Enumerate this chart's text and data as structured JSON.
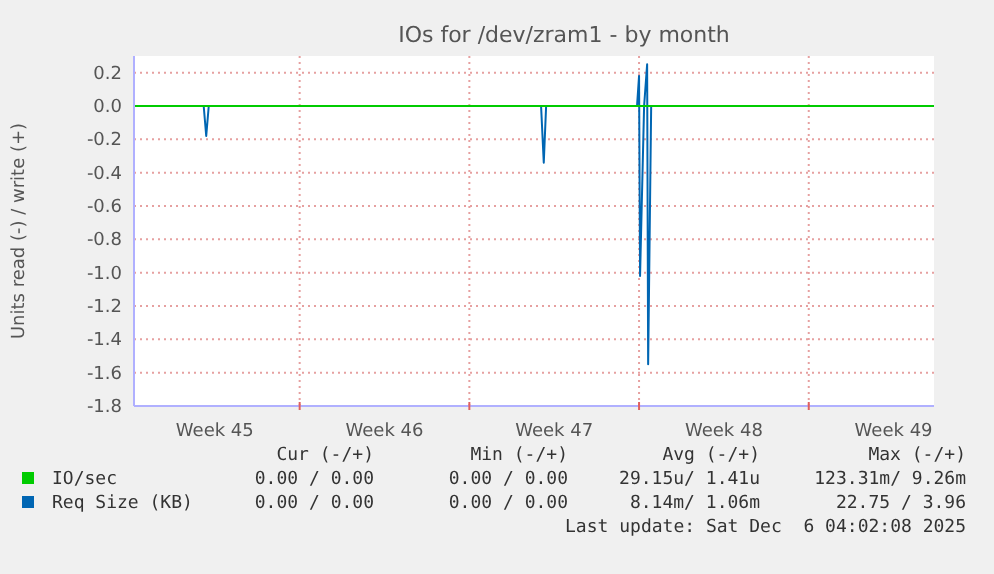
{
  "chart_data": {
    "type": "line",
    "title": "IOs for /dev/zram1 - by month",
    "ylabel": "Units read (-) / write (+)",
    "xlim": [
      "2025-11-03T04:00",
      "2025-12-06T04:00"
    ],
    "xticks": [
      {
        "value": "2025-11-06T12:00",
        "label": "Week 45"
      },
      {
        "value": "2025-11-10T00:00",
        "label": null
      },
      {
        "value": "2025-11-13T12:00",
        "label": "Week 46"
      },
      {
        "value": "2025-11-17T00:00",
        "label": null
      },
      {
        "value": "2025-11-20T12:00",
        "label": "Week 47"
      },
      {
        "value": "2025-11-24T00:00",
        "label": null
      },
      {
        "value": "2025-11-27T12:00",
        "label": "Week 48"
      },
      {
        "value": "2025-12-01T00:00",
        "label": null
      },
      {
        "value": "2025-12-04T12:00",
        "label": "Week 49"
      }
    ],
    "ylim": [
      -1.8,
      0.3
    ],
    "yticks": [
      0.2,
      {
        "value": 0,
        "label": "0.0"
      },
      -0.2,
      -0.4,
      -0.6,
      -0.8,
      {
        "value": -1,
        "label": "-1.0"
      },
      -1.2,
      -1.4,
      -1.6,
      -1.8
    ],
    "grid": true,
    "legend": "bottom",
    "series": [
      {
        "name": "Req Size (KB)",
        "color": "#0066b3",
        "x": [
          "2025-11-06T01:00",
          "2025-11-06T03:30",
          "2025-11-06T06:00",
          "2025-11-13T00:00",
          "2025-11-19T23:00",
          "2025-11-20T01:40",
          "2025-11-20T04:00",
          "2025-11-22T00:00",
          "2025-11-23T22:00",
          "2025-11-24T00:00",
          "2025-11-24T01:00",
          "2025-11-24T05:00",
          "2025-11-24T08:00",
          "2025-11-24T09:00",
          "2025-11-24T12:00"
        ],
        "values": [
          0,
          -0.18,
          0,
          null,
          0,
          -0.34,
          0,
          null,
          0,
          0.18,
          -1.02,
          0,
          0.25,
          -1.55,
          0
        ]
      },
      {
        "name": "IO/sec",
        "color": "#00cc00",
        "x": [
          "2025-11-03T04:00",
          "2025-12-06T04:00"
        ],
        "values": [
          0,
          0
        ]
      }
    ],
    "annotations": [
      "Cur (-/+)",
      "Min (-/+)",
      "Avg (-/+)",
      "Max (-/+)",
      "0.00 / 0.00",
      "0.00 / 0.00",
      "29.15u/ 1.41u",
      "123.31m/ 9.26m",
      "0.00 / 0.00",
      "0.00 / 0.00",
      "8.14m/ 1.06m",
      "22.75 / 3.96",
      "Last update: Sat Dec  6 04:02:08 2025"
    ]
  }
}
